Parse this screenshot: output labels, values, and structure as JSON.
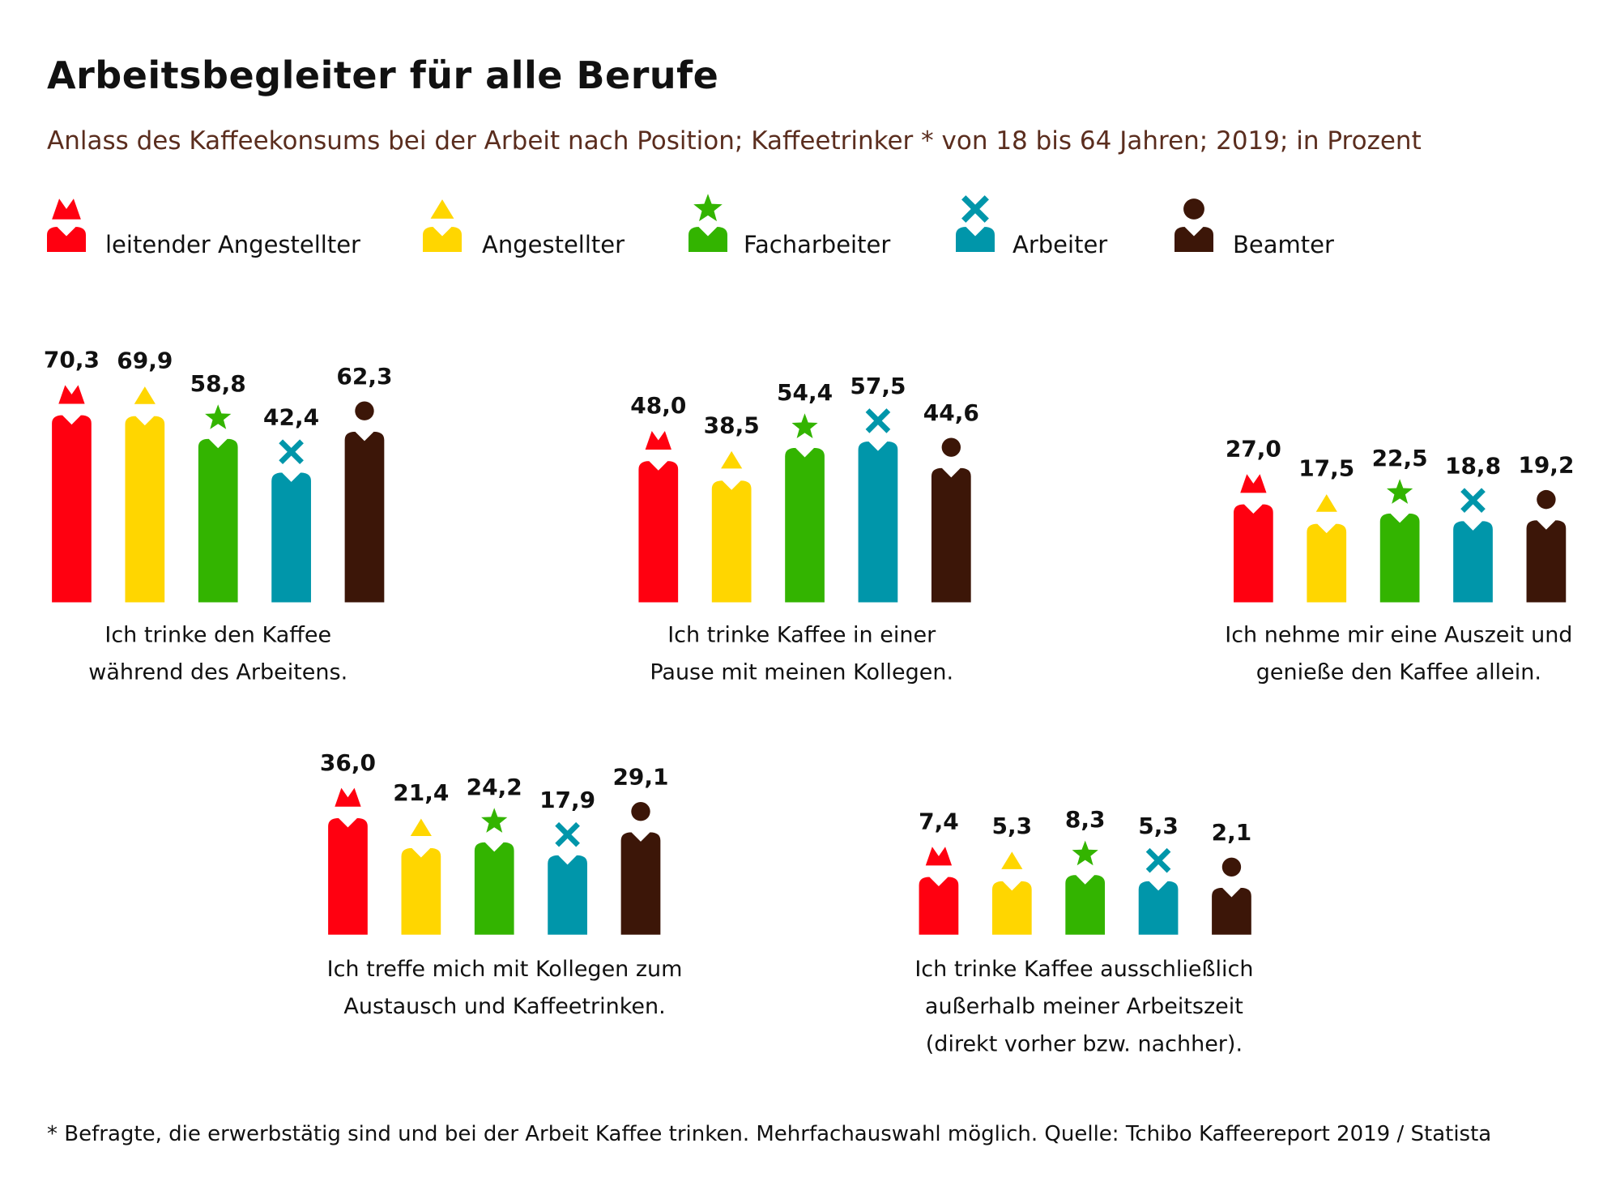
{
  "header": {
    "title": "Arbeitsbegleiter für alle Berufe",
    "subtitle": "Anlass des Kaffeekonsums bei der Arbeit nach Position; Kaffeetrinker * von 18 bis 64 Jahren; 2019; in Prozent"
  },
  "footnote": "* Befragte, die erwerbstätig sind und bei der Arbeit Kaffee trinken. Mehrfachauswahl möglich. Quelle: Tchibo Kaffeereport 2019 / Statista",
  "chart_data": {
    "type": "bar",
    "title": "Arbeitsbegleiter für alle Berufe",
    "subtitle": "Anlass des Kaffeekonsums bei der Arbeit nach Position; Kaffeetrinker * von 18 bis 64 Jahren; 2019; in Prozent",
    "unit": "Prozent",
    "legend_position": "top-left",
    "series": [
      {
        "name": "leitender Angestellter",
        "color": "#ff0010",
        "icon": "crown-icon"
      },
      {
        "name": "Angestellter",
        "color": "#ffd600",
        "icon": "triangle-icon"
      },
      {
        "name": "Facharbeiter",
        "color": "#33b400",
        "icon": "star-icon"
      },
      {
        "name": "Arbeiter",
        "color": "#0096aa",
        "icon": "cross-icon"
      },
      {
        "name": "Beamter",
        "color": "#3c1608",
        "icon": "circle-head-icon"
      }
    ],
    "groups": [
      {
        "label": [
          "Ich trinke den Kaffee",
          "während des Arbeitens."
        ],
        "values": [
          70.3,
          69.9,
          58.8,
          42.4,
          62.3
        ],
        "display": [
          "70,3",
          "69,9",
          "58,8",
          "42,4",
          "62,3"
        ]
      },
      {
        "label": [
          "Ich trinke Kaffee in einer",
          "Pause mit meinen Kollegen."
        ],
        "values": [
          48.0,
          38.5,
          54.4,
          57.5,
          44.6
        ],
        "display": [
          "48,0",
          "38,5",
          "54,4",
          "57,5",
          "44,6"
        ]
      },
      {
        "label": [
          "Ich nehme mir eine Auszeit und",
          "genieße den Kaffee allein."
        ],
        "values": [
          27.0,
          17.5,
          22.5,
          18.8,
          19.2
        ],
        "display": [
          "27,0",
          "17,5",
          "22,5",
          "18,8",
          "19,2"
        ]
      },
      {
        "label": [
          "Ich treffe mich mit Kollegen zum",
          "Austausch und Kaffeetrinken."
        ],
        "values": [
          36.0,
          21.4,
          24.2,
          17.9,
          29.1
        ],
        "display": [
          "36,0",
          "21,4",
          "24,2",
          "17,9",
          "29,1"
        ]
      },
      {
        "label": [
          "Ich trinke Kaffee ausschließlich",
          "außerhalb meiner Arbeitszeit",
          "(direkt vorher bzw. nachher)."
        ],
        "values": [
          7.4,
          5.3,
          8.3,
          5.3,
          2.1
        ],
        "display": [
          "7,4",
          "5,3",
          "8,3",
          "5,3",
          "2,1"
        ]
      }
    ]
  }
}
